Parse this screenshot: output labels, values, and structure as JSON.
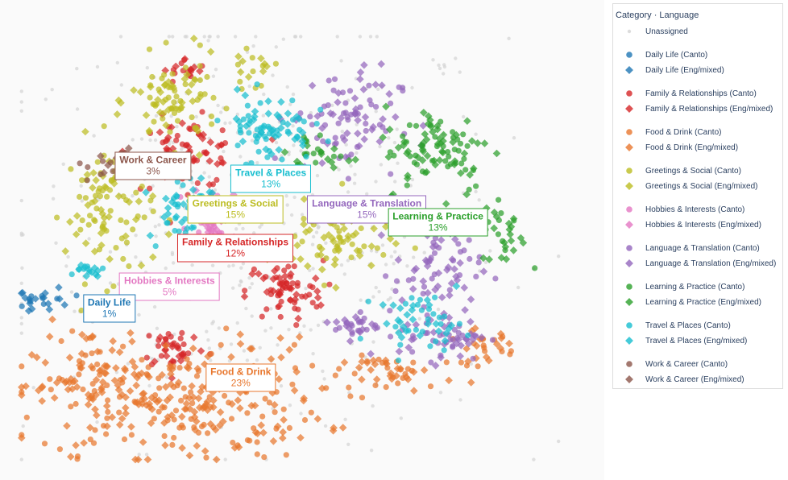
{
  "chart_data": {
    "type": "scatter",
    "title": "",
    "xlabel": "",
    "ylabel": "",
    "grid": false,
    "legend_placement": "right",
    "legend_title": "Category · Language",
    "unassigned_color": "#d3d3d3",
    "categories": [
      {
        "name": "Daily Life",
        "color": "#1f77b4",
        "percent": "1%"
      },
      {
        "name": "Family & Relationships",
        "color": "#d62728",
        "percent": "12%"
      },
      {
        "name": "Food & Drink",
        "color": "#e8772e",
        "percent": "23%"
      },
      {
        "name": "Greetings & Social",
        "color": "#bcbd22",
        "percent": "15%"
      },
      {
        "name": "Hobbies & Interests",
        "color": "#e377c2",
        "percent": "5%"
      },
      {
        "name": "Language & Translation",
        "color": "#9467bd",
        "percent": "15%"
      },
      {
        "name": "Learning & Practice",
        "color": "#2ca02c",
        "percent": "13%"
      },
      {
        "name": "Travel & Places",
        "color": "#17becf",
        "percent": "13%"
      },
      {
        "name": "Work & Career",
        "color": "#8c564b",
        "percent": "3%"
      }
    ],
    "legend_entries": [
      "Unassigned",
      "Daily Life (Canto)",
      "Daily Life (Eng/mixed)",
      "Family & Relationships (Canto)",
      "Family & Relationships (Eng/mixed)",
      "Food & Drink (Canto)",
      "Food & Drink (Eng/mixed)",
      "Greetings & Social (Canto)",
      "Greetings & Social (Eng/mixed)",
      "Hobbies & Interests (Canto)",
      "Hobbies & Interests (Eng/mixed)",
      "Language & Translation (Canto)",
      "Language & Translation (Eng/mixed)",
      "Learning & Practice (Canto)",
      "Learning & Practice (Eng/mixed)",
      "Travel & Places (Canto)",
      "Travel & Places (Eng/mixed)",
      "Work & Career (Canto)",
      "Work & Career (Eng/mixed)"
    ],
    "markers": {
      "Canto": "circle",
      "Eng/mixed": "diamond"
    },
    "cluster_spread": [
      {
        "category": "Daily Life",
        "center": [
          0.05,
          0.38
        ],
        "spread": [
          0.025,
          0.015
        ],
        "canto": 10,
        "eng": 14
      },
      {
        "category": "Family & Relationships",
        "center": [
          0.31,
          0.72
        ],
        "spread": [
          0.05,
          0.04
        ],
        "canto": 50,
        "eng": 30
      },
      {
        "category": "Family & Relationships",
        "center": [
          0.49,
          0.4
        ],
        "spread": [
          0.035,
          0.035
        ],
        "canto": 40,
        "eng": 30
      },
      {
        "category": "Family & Relationships",
        "center": [
          0.29,
          0.27
        ],
        "spread": [
          0.03,
          0.025
        ],
        "canto": 25,
        "eng": 15
      },
      {
        "category": "Family & Relationships",
        "center": [
          0.31,
          0.91
        ],
        "spread": [
          0.02,
          0.015
        ],
        "canto": 10,
        "eng": 8
      },
      {
        "category": "Food & Drink",
        "center": [
          0.3,
          0.15
        ],
        "spread": [
          0.13,
          0.07
        ],
        "canto": 120,
        "eng": 180
      },
      {
        "category": "Food & Drink",
        "center": [
          0.13,
          0.2
        ],
        "spread": [
          0.04,
          0.06
        ],
        "canto": 25,
        "eng": 35
      },
      {
        "category": "Food & Drink",
        "center": [
          0.7,
          0.21
        ],
        "spread": [
          0.05,
          0.02
        ],
        "canto": 20,
        "eng": 25
      },
      {
        "category": "Food & Drink",
        "center": [
          0.85,
          0.27
        ],
        "spread": [
          0.03,
          0.02
        ],
        "canto": 15,
        "eng": 15
      },
      {
        "category": "Greetings & Social",
        "center": [
          0.17,
          0.59
        ],
        "spread": [
          0.04,
          0.08
        ],
        "canto": 60,
        "eng": 40
      },
      {
        "category": "Greetings & Social",
        "center": [
          0.29,
          0.84
        ],
        "spread": [
          0.04,
          0.05
        ],
        "canto": 50,
        "eng": 35
      },
      {
        "category": "Greetings & Social",
        "center": [
          0.58,
          0.52
        ],
        "spread": [
          0.05,
          0.05
        ],
        "canto": 35,
        "eng": 45
      },
      {
        "category": "Greetings & Social",
        "center": [
          0.43,
          0.91
        ],
        "spread": [
          0.02,
          0.02
        ],
        "canto": 10,
        "eng": 8
      },
      {
        "category": "Hobbies & Interests",
        "center": [
          0.36,
          0.58
        ],
        "spread": [
          0.02,
          0.03
        ],
        "canto": 25,
        "eng": 20
      },
      {
        "category": "Language & Translation",
        "center": [
          0.6,
          0.8
        ],
        "spread": [
          0.05,
          0.06
        ],
        "canto": 50,
        "eng": 40
      },
      {
        "category": "Language & Translation",
        "center": [
          0.77,
          0.45
        ],
        "spread": [
          0.04,
          0.05
        ],
        "canto": 30,
        "eng": 35
      },
      {
        "category": "Language & Translation",
        "center": [
          0.78,
          0.3
        ],
        "spread": [
          0.04,
          0.03
        ],
        "canto": 30,
        "eng": 30
      },
      {
        "category": "Language & Translation",
        "center": [
          0.62,
          0.32
        ],
        "spread": [
          0.02,
          0.015
        ],
        "canto": 15,
        "eng": 15
      },
      {
        "category": "Learning & Practice",
        "center": [
          0.77,
          0.73
        ],
        "spread": [
          0.05,
          0.05
        ],
        "canto": 40,
        "eng": 55
      },
      {
        "category": "Learning & Practice",
        "center": [
          0.89,
          0.54
        ],
        "spread": [
          0.02,
          0.04
        ],
        "canto": 10,
        "eng": 20
      },
      {
        "category": "Learning & Practice",
        "center": [
          0.55,
          0.71
        ],
        "spread": [
          0.04,
          0.03
        ],
        "canto": 15,
        "eng": 15
      },
      {
        "category": "Travel & Places",
        "center": [
          0.46,
          0.78
        ],
        "spread": [
          0.04,
          0.04
        ],
        "canto": 45,
        "eng": 35
      },
      {
        "category": "Travel & Places",
        "center": [
          0.3,
          0.6
        ],
        "spread": [
          0.03,
          0.04
        ],
        "canto": 25,
        "eng": 20
      },
      {
        "category": "Travel & Places",
        "center": [
          0.74,
          0.33
        ],
        "spread": [
          0.04,
          0.03
        ],
        "canto": 25,
        "eng": 25
      },
      {
        "category": "Travel & Places",
        "center": [
          0.13,
          0.45
        ],
        "spread": [
          0.015,
          0.01
        ],
        "canto": 6,
        "eng": 10
      },
      {
        "category": "Work & Career",
        "center": [
          0.19,
          0.69
        ],
        "spread": [
          0.03,
          0.02
        ],
        "canto": 15,
        "eng": 12
      },
      {
        "category": "Unassigned",
        "center": [
          0.45,
          0.55
        ],
        "spread": [
          0.22,
          0.25
        ],
        "canto": 450,
        "eng": 0
      }
    ],
    "cluster_labels": [
      {
        "text": "Work & Career",
        "percent": "3%",
        "color": "#8c564b",
        "x": 0.25,
        "y": 0.69
      },
      {
        "text": "Travel & Places",
        "percent": "13%",
        "color": "#17becf",
        "x": 0.465,
        "y": 0.66
      },
      {
        "text": "Greetings & Social",
        "percent": "15%",
        "color": "#bcbd22",
        "x": 0.4,
        "y": 0.59
      },
      {
        "text": "Language & Translation",
        "percent": "15%",
        "color": "#9467bd",
        "x": 0.64,
        "y": 0.59
      },
      {
        "text": "Learning & Practice",
        "percent": "13%",
        "color": "#2ca02c",
        "x": 0.77,
        "y": 0.56
      },
      {
        "text": "Family & Relationships",
        "percent": "12%",
        "color": "#d62728",
        "x": 0.4,
        "y": 0.5
      },
      {
        "text": "Hobbies & Interests",
        "percent": "5%",
        "color": "#e377c2",
        "x": 0.28,
        "y": 0.41
      },
      {
        "text": "Daily Life",
        "percent": "1%",
        "color": "#1f77b4",
        "x": 0.17,
        "y": 0.36
      },
      {
        "text": "Food & Drink",
        "percent": "23%",
        "color": "#e8772e",
        "x": 0.41,
        "y": 0.2
      }
    ]
  }
}
